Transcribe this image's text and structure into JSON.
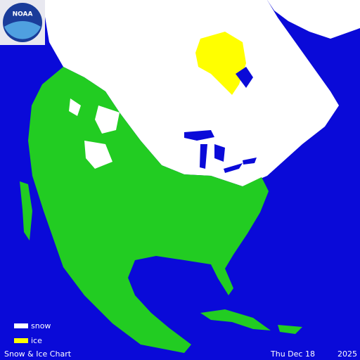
{
  "logo": {
    "text": "NOAA"
  },
  "legend": {
    "items": [
      {
        "label": "snow",
        "color": "#ffffff"
      },
      {
        "label": "ice",
        "color": "#ffff00"
      }
    ]
  },
  "footer": {
    "title": "Snow & Ice Chart",
    "date": "Thu Dec 18",
    "year": "2025"
  }
}
